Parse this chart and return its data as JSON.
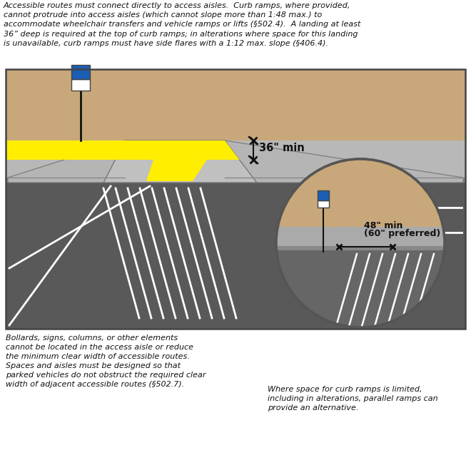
{
  "top_text_lines": [
    "Accessible routes must connect directly to access aisles.  Curb ramps, where provided,",
    "cannot protrude into access aisles (which cannot slope more than 1:48 max.) to",
    "accommodate wheelchair transfers and vehicle ramps or lifts (§502.4).  A landing at least",
    "36” deep is required at the top of curb ramps; in alterations where space for this landing",
    "is unavailable, curb ramps must have side flares with a 1:12 max. slope (§406.4)."
  ],
  "bottom_left_lines": [
    "Bollards, signs, columns, or other elements",
    "cannot be located in the access aisle or reduce",
    "the minimum clear width of accessible routes.",
    "Spaces and aisles must be designed so that",
    "parked vehicles do not obstruct the required clear",
    "width of adjacent accessible routes (§502.7)."
  ],
  "bottom_right_lines": [
    "Where space for curb ramps is limited,",
    "including in alterations, parallel ramps can",
    "provide an alternative."
  ],
  "label_36": "36\" min",
  "label_48_1": "48\" min",
  "label_48_2": "(60\" preferred)",
  "tan_color": "#c8a87a",
  "sidewalk_light": "#b8b8b8",
  "sidewalk_mid": "#a8a8a8",
  "curb_dark": "#888888",
  "parking_dark": "#595959",
  "yellow": "#ffee00",
  "white": "#ffffff",
  "black": "#111111",
  "ramp_gray": "#c0c0c0",
  "box_border": "#555555",
  "isa_blue": "#1a5fb4",
  "circle_edge": "#555555"
}
